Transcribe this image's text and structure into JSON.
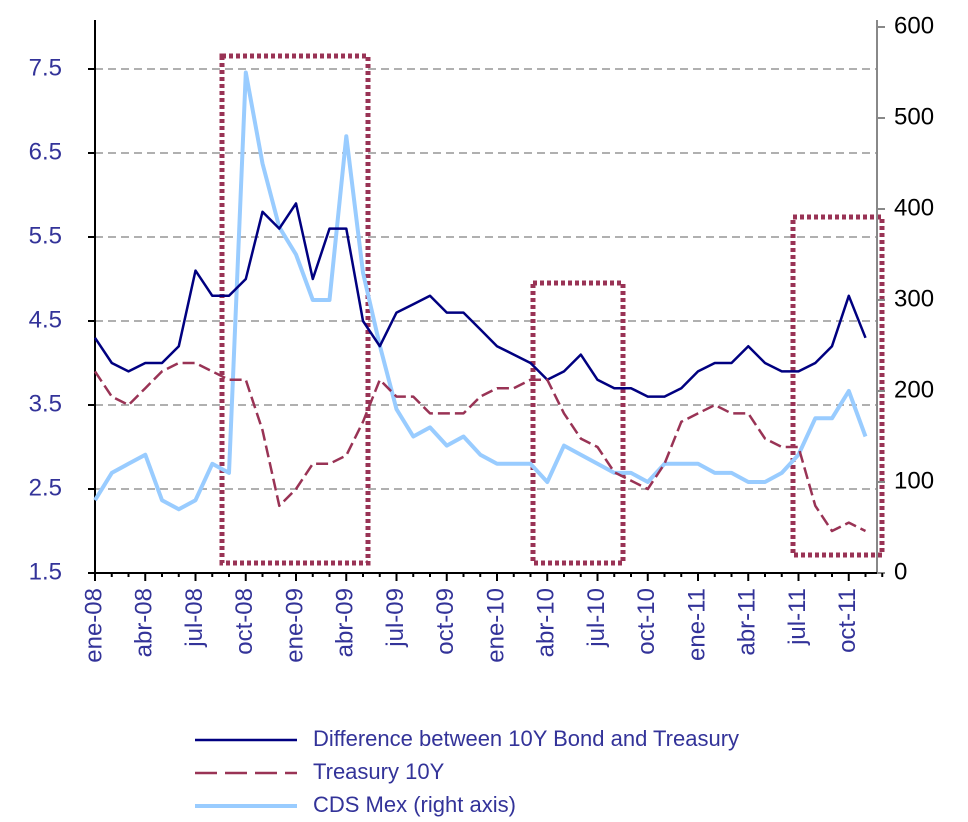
{
  "chart_data": {
    "type": "line",
    "categories": [
      "ene-08",
      null,
      null,
      "abr-08",
      null,
      null,
      "jul-08",
      null,
      null,
      "oct-08",
      null,
      null,
      "ene-09",
      null,
      null,
      "abr-09",
      null,
      null,
      "jul-09",
      null,
      null,
      "oct-09",
      null,
      null,
      "ene-10",
      null,
      null,
      "abr-10",
      null,
      null,
      "jul-10",
      null,
      null,
      "oct-10",
      null,
      null,
      "ene-11",
      null,
      null,
      "abr-11",
      null,
      null,
      "jul-11",
      null,
      null,
      "oct-11",
      null,
      null
    ],
    "series": [
      {
        "name": "Difference between 10Y Bond and Treasury",
        "color": "#000080",
        "style": "solid",
        "values": [
          4.3,
          4.0,
          3.9,
          4.0,
          4.0,
          4.2,
          5.1,
          4.8,
          4.8,
          5.0,
          5.8,
          5.6,
          5.9,
          5.0,
          5.6,
          5.6,
          4.5,
          4.2,
          4.6,
          4.7,
          4.8,
          4.6,
          4.6,
          4.4,
          4.2,
          4.1,
          4.0,
          3.8,
          3.9,
          4.1,
          3.8,
          3.7,
          3.7,
          3.6,
          3.6,
          3.7,
          3.9,
          4.0,
          4.0,
          4.2,
          4.0,
          3.9,
          3.9,
          4.0,
          4.2,
          4.8,
          4.3,
          null
        ]
      },
      {
        "name": "Treasury 10Y",
        "color": "#993355",
        "style": "dashed",
        "values": [
          3.9,
          3.6,
          3.5,
          3.7,
          3.9,
          4.0,
          4.0,
          3.9,
          3.8,
          3.8,
          3.2,
          2.3,
          2.5,
          2.8,
          2.8,
          2.9,
          3.3,
          3.8,
          3.6,
          3.6,
          3.4,
          3.4,
          3.4,
          3.6,
          3.7,
          3.7,
          3.8,
          3.8,
          3.4,
          3.1,
          3.0,
          2.7,
          2.6,
          2.5,
          2.8,
          3.3,
          3.4,
          3.5,
          3.4,
          3.4,
          3.1,
          3.0,
          3.0,
          2.3,
          2.0,
          2.1,
          2.0,
          null
        ]
      },
      {
        "name": "CDS Mex (right axis)",
        "color": "#99ccff",
        "style": "solid",
        "axis": "y2",
        "values": [
          80,
          110,
          120,
          130,
          80,
          70,
          80,
          120,
          110,
          550,
          450,
          380,
          350,
          300,
          300,
          480,
          330,
          250,
          180,
          150,
          160,
          140,
          150,
          130,
          120,
          120,
          120,
          100,
          140,
          130,
          120,
          110,
          110,
          100,
          120,
          120,
          120,
          110,
          110,
          100,
          100,
          110,
          130,
          170,
          170,
          200,
          150,
          null
        ]
      }
    ],
    "ylim": [
      1.5,
      8
    ],
    "yticks": [
      1.5,
      2.5,
      3.5,
      4.5,
      5.5,
      6.5,
      7.5
    ],
    "y2lim": [
      0,
      600
    ],
    "y2ticks": [
      0,
      100,
      200,
      300,
      400,
      500,
      600
    ],
    "grid": true,
    "legend": "bottom"
  }
}
